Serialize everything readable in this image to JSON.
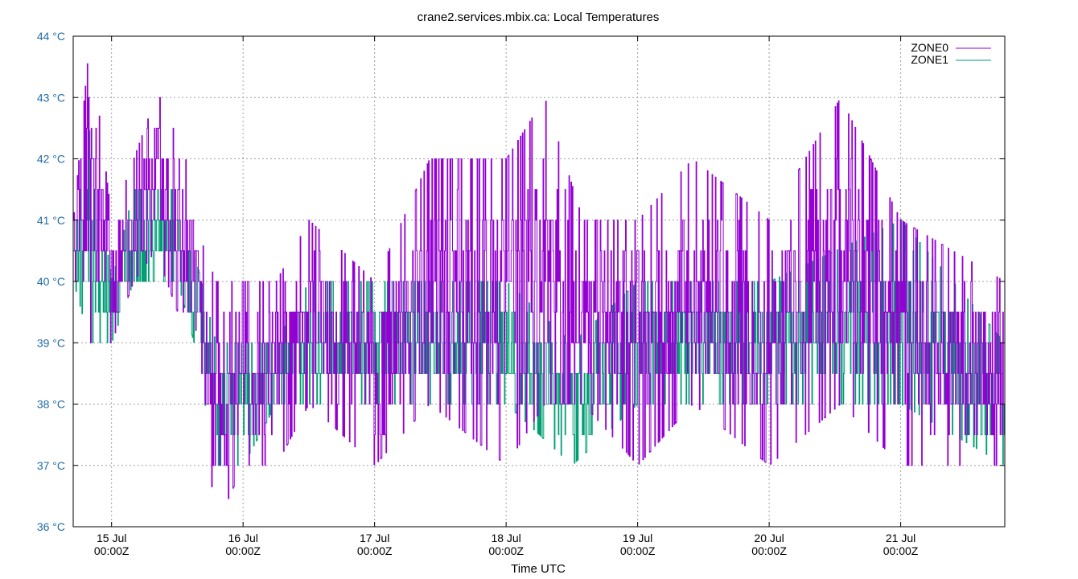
{
  "chart_data": {
    "type": "line",
    "title": "crane2.services.mbix.ca: Local Temperatures",
    "xlabel": "Time UTC",
    "ylabel": "",
    "ylim": [
      36,
      44
    ],
    "y_unit": "°C",
    "y_ticks": [
      36,
      37,
      38,
      39,
      40,
      41,
      42,
      43,
      44
    ],
    "x_range_days": [
      "2024-07-14T17:00",
      "2024-07-21T19:00"
    ],
    "x_ticks": [
      {
        "day": "15 Jul",
        "time": "00:00Z"
      },
      {
        "day": "16 Jul",
        "time": "00:00Z"
      },
      {
        "day": "17 Jul",
        "time": "00:00Z"
      },
      {
        "day": "18 Jul",
        "time": "00:00Z"
      },
      {
        "day": "19 Jul",
        "time": "00:00Z"
      },
      {
        "day": "20 Jul",
        "time": "00:00Z"
      },
      {
        "day": "21 Jul",
        "time": "00:00Z"
      }
    ],
    "grid": true,
    "legend_position": "top-right",
    "series": [
      {
        "name": "ZONE0",
        "color": "#9400d3",
        "envelope": [
          {
            "t": "07-14 17:00",
            "min": 39.5,
            "max": 41.0
          },
          {
            "t": "07-14 20:00",
            "min": 39.0,
            "max": 44.0
          },
          {
            "t": "07-15 00:00",
            "min": 39.0,
            "max": 41.0
          },
          {
            "t": "07-15 04:00",
            "min": 40.0,
            "max": 42.0
          },
          {
            "t": "07-15 08:00",
            "min": 40.5,
            "max": 43.0
          },
          {
            "t": "07-15 12:00",
            "min": 39.5,
            "max": 43.0
          },
          {
            "t": "07-15 15:00",
            "min": 39.5,
            "max": 41.0
          },
          {
            "t": "07-15 19:00",
            "min": 36.0,
            "max": 40.0
          },
          {
            "t": "07-16 00:00",
            "min": 37.0,
            "max": 40.0
          },
          {
            "t": "07-16 06:00",
            "min": 37.0,
            "max": 40.0
          },
          {
            "t": "07-16 12:00",
            "min": 38.0,
            "max": 41.0
          },
          {
            "t": "07-17 00:00",
            "min": 37.0,
            "max": 40.0
          },
          {
            "t": "07-17 10:00",
            "min": 38.0,
            "max": 42.0
          },
          {
            "t": "07-18 00:00",
            "min": 37.0,
            "max": 42.0
          },
          {
            "t": "07-18 07:00",
            "min": 38.0,
            "max": 43.0
          },
          {
            "t": "07-18 14:00",
            "min": 38.0,
            "max": 41.0
          },
          {
            "t": "07-19 00:00",
            "min": 37.0,
            "max": 41.0
          },
          {
            "t": "07-19 10:00",
            "min": 38.0,
            "max": 42.0
          },
          {
            "t": "07-20 00:00",
            "min": 37.0,
            "max": 41.0
          },
          {
            "t": "07-20 13:00",
            "min": 38.0,
            "max": 43.0
          },
          {
            "t": "07-21 00:00",
            "min": 37.0,
            "max": 41.0
          },
          {
            "t": "07-21 19:00",
            "min": 37.0,
            "max": 40.0
          }
        ]
      },
      {
        "name": "ZONE1",
        "color": "#009e73",
        "envelope": [
          {
            "t": "07-14 17:00",
            "min": 40.0,
            "max": 41.0
          },
          {
            "t": "07-14 20:00",
            "min": 39.0,
            "max": 42.5
          },
          {
            "t": "07-15 00:00",
            "min": 39.0,
            "max": 40.0
          },
          {
            "t": "07-15 04:00",
            "min": 40.0,
            "max": 41.5
          },
          {
            "t": "07-15 12:00",
            "min": 40.0,
            "max": 41.5
          },
          {
            "t": "07-15 15:00",
            "min": 39.0,
            "max": 40.5
          },
          {
            "t": "07-15 19:00",
            "min": 37.0,
            "max": 39.0
          },
          {
            "t": "07-16 00:00",
            "min": 37.0,
            "max": 39.0
          },
          {
            "t": "07-16 06:00",
            "min": 38.0,
            "max": 39.0
          },
          {
            "t": "07-16 12:00",
            "min": 38.0,
            "max": 40.0
          },
          {
            "t": "07-17 00:00",
            "min": 38.0,
            "max": 40.0
          },
          {
            "t": "07-18 00:00",
            "min": 38.0,
            "max": 40.0
          },
          {
            "t": "07-18 12:00",
            "min": 37.0,
            "max": 39.0
          },
          {
            "t": "07-19 00:00",
            "min": 38.0,
            "max": 40.0
          },
          {
            "t": "07-20 00:00",
            "min": 38.0,
            "max": 40.0
          },
          {
            "t": "07-21 00:00",
            "min": 38.0,
            "max": 41.0
          },
          {
            "t": "07-21 19:00",
            "min": 37.0,
            "max": 39.0
          }
        ]
      }
    ]
  }
}
